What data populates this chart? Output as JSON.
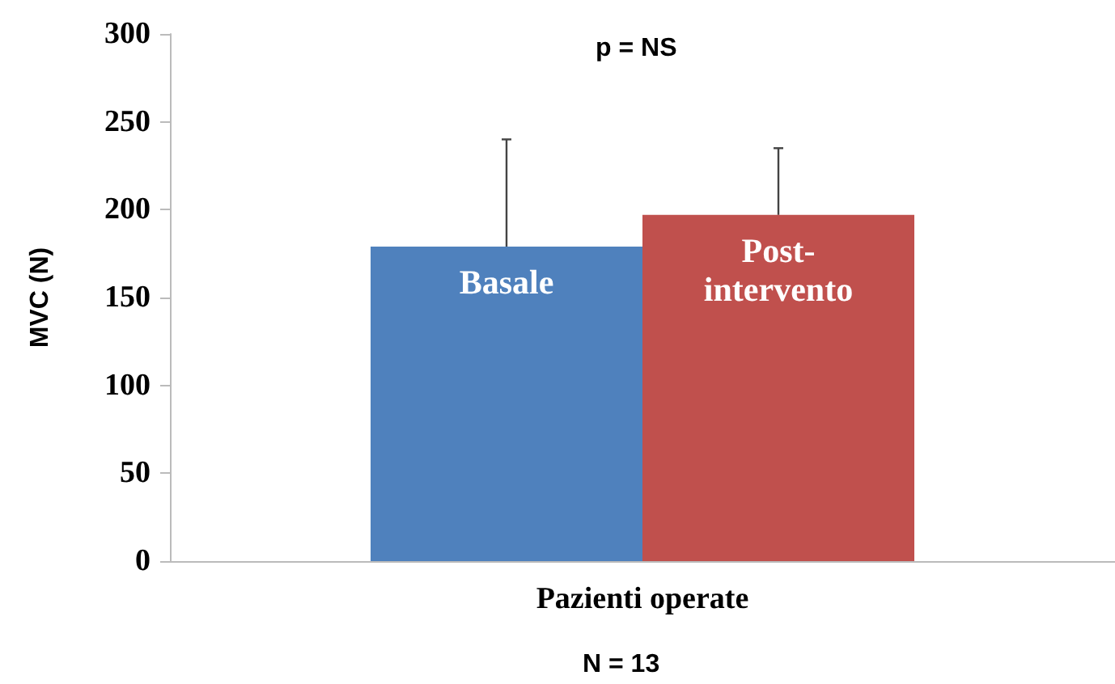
{
  "chart_data": {
    "type": "bar",
    "ylabel": "MVC (N)",
    "categories": [
      "Pazienti operate"
    ],
    "series": [
      {
        "name": "Basale",
        "color": "#4f81bd",
        "values": [
          179
        ],
        "errors": [
          [
            179,
            240
          ]
        ]
      },
      {
        "name": "Post-intervento",
        "color": "#c0504d",
        "values": [
          197
        ],
        "errors": [
          [
            197,
            235
          ]
        ]
      }
    ],
    "ylim": [
      0,
      300
    ],
    "yticks": [
      0,
      50,
      100,
      150,
      200,
      250,
      300
    ],
    "grid": false,
    "legend": false,
    "annotations": [
      "p = NS",
      "N = 13"
    ]
  }
}
